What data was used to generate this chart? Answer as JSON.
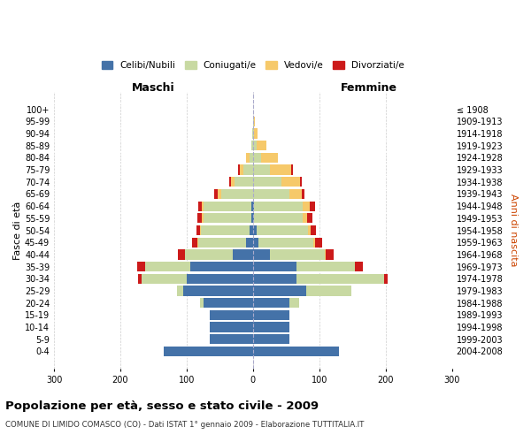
{
  "age_groups": [
    "0-4",
    "5-9",
    "10-14",
    "15-19",
    "20-24",
    "25-29",
    "30-34",
    "35-39",
    "40-44",
    "45-49",
    "50-54",
    "55-59",
    "60-64",
    "65-69",
    "70-74",
    "75-79",
    "80-84",
    "85-89",
    "90-94",
    "95-99",
    "100+"
  ],
  "birth_years": [
    "2004-2008",
    "1999-2003",
    "1994-1998",
    "1989-1993",
    "1984-1988",
    "1979-1983",
    "1974-1978",
    "1969-1973",
    "1964-1968",
    "1959-1963",
    "1954-1958",
    "1949-1953",
    "1944-1948",
    "1939-1943",
    "1934-1938",
    "1929-1933",
    "1924-1928",
    "1919-1923",
    "1914-1918",
    "1909-1913",
    "≤ 1908"
  ],
  "colors": {
    "celibi": "#4472a8",
    "coniugati": "#c8d9a2",
    "vedovi": "#f6c96a",
    "divorziati": "#cc1a1a"
  },
  "title": "Popolazione per età, sesso e stato civile - 2009",
  "subtitle": "COMUNE DI LIMIDO COMASCO (CO) - Dati ISTAT 1° gennaio 2009 - Elaborazione TUTTITALIA.IT",
  "xlabel_left": "Maschi",
  "xlabel_right": "Femmine",
  "ylabel_left": "Fasce di età",
  "ylabel_right": "Anni di nascita",
  "xlim": 300,
  "bg_color": "#ffffff",
  "grid_color": "#cccccc",
  "legend_labels": [
    "Celibi/Nubili",
    "Coniugati/e",
    "Vedovi/e",
    "Divorziati/e"
  ],
  "m_celibi": [
    135,
    65,
    65,
    65,
    75,
    105,
    100,
    95,
    30,
    10,
    5,
    2,
    2,
    0,
    0,
    0,
    0,
    0,
    0,
    0,
    0
  ],
  "m_coniugati": [
    0,
    0,
    0,
    0,
    5,
    10,
    68,
    68,
    72,
    73,
    73,
    73,
    72,
    48,
    28,
    15,
    5,
    2,
    1,
    0,
    0
  ],
  "m_vedovi": [
    0,
    0,
    0,
    0,
    0,
    0,
    0,
    0,
    1,
    1,
    2,
    2,
    3,
    5,
    5,
    5,
    5,
    0,
    0,
    0,
    0
  ],
  "m_divorziati": [
    0,
    0,
    0,
    0,
    0,
    0,
    5,
    12,
    10,
    8,
    5,
    7,
    5,
    5,
    3,
    2,
    0,
    0,
    0,
    0,
    0
  ],
  "f_nubili": [
    130,
    55,
    55,
    55,
    55,
    80,
    65,
    65,
    25,
    8,
    5,
    2,
    2,
    0,
    0,
    0,
    0,
    0,
    0,
    0,
    0
  ],
  "f_coniugate": [
    0,
    0,
    0,
    0,
    15,
    68,
    133,
    88,
    83,
    83,
    78,
    73,
    73,
    55,
    43,
    25,
    12,
    5,
    2,
    1,
    0
  ],
  "f_vedove": [
    0,
    0,
    0,
    0,
    0,
    0,
    0,
    1,
    2,
    3,
    4,
    7,
    11,
    18,
    28,
    33,
    25,
    15,
    5,
    2,
    0
  ],
  "f_divorziate": [
    0,
    0,
    0,
    0,
    0,
    0,
    5,
    12,
    12,
    10,
    8,
    8,
    7,
    5,
    3,
    2,
    0,
    0,
    0,
    0,
    0
  ]
}
